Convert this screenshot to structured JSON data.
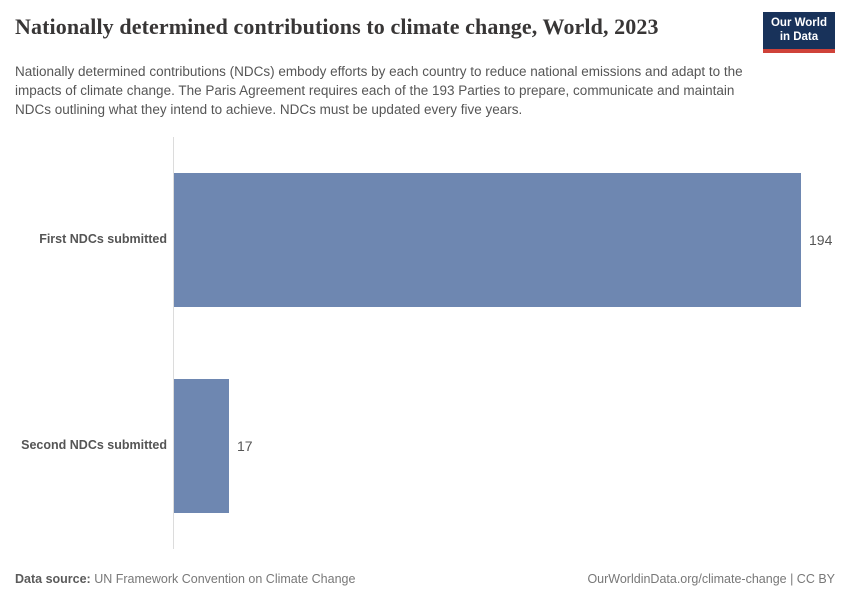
{
  "header": {
    "title": "Nationally determined contributions to climate change, World, 2023",
    "subtitle": "Nationally determined contributions (NDCs) embody efforts by each country to reduce national emissions and adapt to the impacts of climate change. The Paris Agreement requires each of the 193 Parties to prepare, communicate and maintain NDCs outlining what they intend to achieve. NDCs must be updated every five years.",
    "logo": {
      "line1": "Our World",
      "line2": "in Data"
    }
  },
  "chart_data": {
    "type": "bar",
    "orientation": "horizontal",
    "title": "Nationally determined contributions to climate change, World, 2023",
    "categories": [
      "First NDCs submitted",
      "Second NDCs submitted"
    ],
    "values": [
      194,
      17
    ],
    "value_labels": [
      "194",
      "17"
    ],
    "xlim": [
      0,
      194
    ],
    "xlabel": "",
    "ylabel": "",
    "grid": false,
    "legend": "none",
    "bar_color": "#6e87b1"
  },
  "footer": {
    "source_label": "Data source:",
    "source_text": " UN Framework Convention on Climate Change",
    "link_text": "OurWorldinData.org/climate-change | CC BY"
  },
  "colors": {
    "bar": "#6e87b1",
    "title": "#383636",
    "text": "#565656",
    "axis": "#dcdcdc",
    "logo_bg": "#18325a",
    "logo_accent": "#cf4239"
  }
}
